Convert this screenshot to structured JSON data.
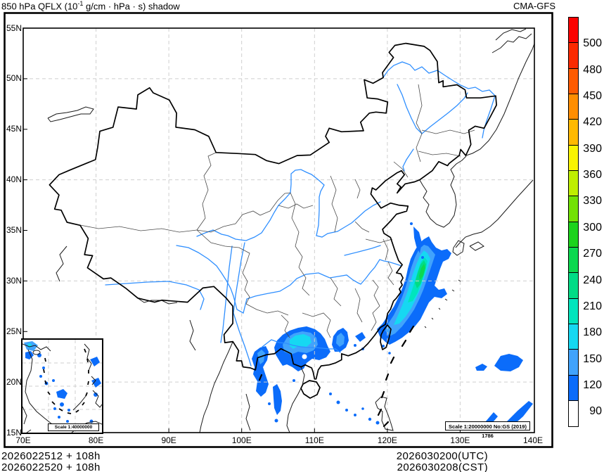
{
  "header": {
    "title_p1": "850 hPa QFLX (10",
    "title_sup": "-1",
    "title_p2": " g/cm · hPa · s) shadow",
    "model": "CMA-GFS"
  },
  "axes": {
    "lat": [
      "55N",
      "50N",
      "45N",
      "40N",
      "35N",
      "30N",
      "25N",
      "20N",
      "15N"
    ],
    "lon": [
      "70E",
      "80E",
      "90E",
      "100E",
      "110E",
      "120E",
      "130E",
      "140E"
    ]
  },
  "colorbar": {
    "tick_labels": [
      "500",
      "480",
      "450",
      "420",
      "390",
      "360",
      "330",
      "300",
      "270",
      "240",
      "210",
      "180",
      "150",
      "120",
      "90"
    ],
    "colors_top_to_bottom": [
      "#fb0200",
      "#fb2a00",
      "#fe5b00",
      "#ff8e00",
      "#ffb900",
      "#f9f400",
      "#bfee00",
      "#72e204",
      "#1cd31c",
      "#0cd84f",
      "#00dc86",
      "#00e5bd",
      "#16d8f2",
      "#41a3fc",
      "#0b6cfa",
      "#ffffff"
    ]
  },
  "footer": {
    "run_line1": "2026022512 + 108h",
    "run_line2": "2026022520 + 108h",
    "valid_line1": "2026030200(UTC)",
    "valid_line2": "2026030208(CST)"
  },
  "map": {
    "scale_note": "Scale 1:20000000 No:GS (2019) 1786",
    "inset_scale_note": "Scale 1:40000000",
    "river_color": "#2f8fff",
    "grid_color": "#cfcfcf"
  }
}
